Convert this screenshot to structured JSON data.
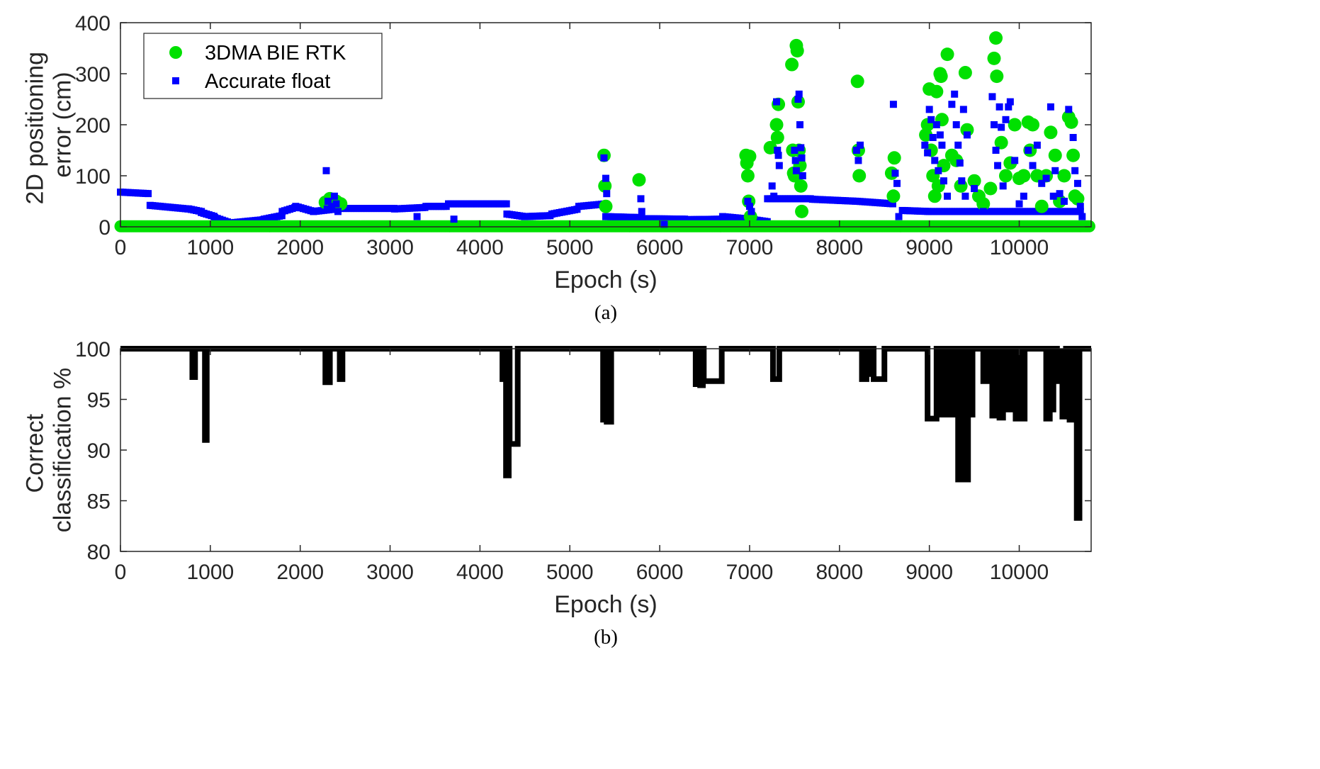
{
  "chart_data": [
    {
      "type": "scatter",
      "caption": "(a)",
      "xlabel": "Epoch (s)",
      "ylabel": [
        "2D positioning",
        "error (cm)"
      ],
      "xlim": [
        0,
        10800
      ],
      "ylim": [
        0,
        400
      ],
      "xticks": [
        0,
        1000,
        2000,
        3000,
        4000,
        5000,
        6000,
        7000,
        8000,
        9000,
        10000
      ],
      "yticks": [
        0,
        100,
        200,
        300,
        400
      ],
      "grid": false,
      "legend": {
        "placement": "top-left"
      },
      "series": [
        {
          "name": "3DMA BIE RTK",
          "color": "#00e000",
          "marker": "circle",
          "baseline": {
            "x_start": 0,
            "x_end": 10800,
            "y": 1
          },
          "points": [
            [
              2280,
              48
            ],
            [
              2330,
              55
            ],
            [
              2400,
              50
            ],
            [
              2450,
              45
            ],
            [
              5380,
              140
            ],
            [
              5390,
              80
            ],
            [
              5400,
              40
            ],
            [
              5770,
              92
            ],
            [
              6960,
              140
            ],
            [
              6970,
              125
            ],
            [
              6980,
              100
            ],
            [
              6990,
              50
            ],
            [
              7000,
              138
            ],
            [
              7010,
              20
            ],
            [
              7230,
              155
            ],
            [
              7300,
              200
            ],
            [
              7310,
              175
            ],
            [
              7320,
              240
            ],
            [
              7470,
              318
            ],
            [
              7480,
              150
            ],
            [
              7490,
              105
            ],
            [
              7500,
              100
            ],
            [
              7520,
              355
            ],
            [
              7530,
              345
            ],
            [
              7540,
              245
            ],
            [
              7550,
              150
            ],
            [
              7560,
              120
            ],
            [
              7570,
              80
            ],
            [
              7580,
              30
            ],
            [
              8200,
              285
            ],
            [
              8210,
              150
            ],
            [
              8220,
              100
            ],
            [
              8580,
              105
            ],
            [
              8600,
              60
            ],
            [
              8610,
              135
            ],
            [
              8960,
              180
            ],
            [
              8980,
              200
            ],
            [
              9000,
              270
            ],
            [
              9020,
              150
            ],
            [
              9040,
              100
            ],
            [
              9060,
              60
            ],
            [
              9080,
              265
            ],
            [
              9100,
              80
            ],
            [
              9120,
              300
            ],
            [
              9130,
              295
            ],
            [
              9140,
              210
            ],
            [
              9160,
              120
            ],
            [
              9200,
              338
            ],
            [
              9250,
              140
            ],
            [
              9300,
              130
            ],
            [
              9350,
              80
            ],
            [
              9400,
              302
            ],
            [
              9420,
              190
            ],
            [
              9500,
              90
            ],
            [
              9550,
              60
            ],
            [
              9600,
              45
            ],
            [
              9680,
              75
            ],
            [
              9720,
              330
            ],
            [
              9740,
              370
            ],
            [
              9750,
              295
            ],
            [
              9800,
              165
            ],
            [
              9850,
              100
            ],
            [
              9900,
              125
            ],
            [
              9950,
              200
            ],
            [
              10000,
              95
            ],
            [
              10050,
              100
            ],
            [
              10100,
              205
            ],
            [
              10120,
              150
            ],
            [
              10150,
              200
            ],
            [
              10200,
              100
            ],
            [
              10250,
              40
            ],
            [
              10300,
              100
            ],
            [
              10350,
              185
            ],
            [
              10400,
              140
            ],
            [
              10450,
              50
            ],
            [
              10500,
              100
            ],
            [
              10550,
              215
            ],
            [
              10580,
              205
            ],
            [
              10600,
              140
            ],
            [
              10620,
              60
            ],
            [
              10650,
              55
            ]
          ]
        },
        {
          "name": "Accurate float",
          "color": "#0000ff",
          "marker": "square",
          "segments": [
            [
              0,
              320,
              68,
              65
            ],
            [
              330,
              750,
              42,
              35
            ],
            [
              760,
              900,
              35,
              30
            ],
            [
              900,
              1050,
              28,
              20
            ],
            [
              1050,
              1250,
              18,
              6
            ],
            [
              1250,
              1600,
              8,
              14
            ],
            [
              1600,
              1800,
              15,
              22
            ],
            [
              1800,
              1950,
              30,
              38
            ],
            [
              1950,
              2150,
              40,
              30
            ],
            [
              2150,
              2400,
              30,
              35
            ],
            [
              2400,
              3050,
              36,
              36
            ],
            [
              3050,
              3400,
              35,
              38
            ],
            [
              3400,
              3650,
              40,
              40
            ],
            [
              3650,
              4300,
              45,
              45
            ],
            [
              4300,
              4500,
              25,
              20
            ],
            [
              4500,
              4800,
              20,
              22
            ],
            [
              4800,
              5100,
              25,
              35
            ],
            [
              5100,
              5400,
              40,
              45
            ],
            [
              5400,
              5800,
              20,
              18
            ],
            [
              5800,
              6300,
              16,
              15
            ],
            [
              6300,
              6700,
              14,
              15
            ],
            [
              6700,
              7000,
              20,
              15
            ],
            [
              7000,
              7200,
              15,
              10
            ],
            [
              7200,
              7700,
              55,
              55
            ],
            [
              7700,
              8200,
              54,
              50
            ],
            [
              8200,
              8600,
              50,
              45
            ],
            [
              8700,
              9000,
              32,
              30
            ],
            [
              9000,
              10700,
              30,
              30
            ]
          ],
          "points": [
            [
              2290,
              110
            ],
            [
              2300,
              35
            ],
            [
              2310,
              50
            ],
            [
              2350,
              40
            ],
            [
              2380,
              60
            ],
            [
              2400,
              45
            ],
            [
              2420,
              30
            ],
            [
              3300,
              20
            ],
            [
              3710,
              15
            ],
            [
              5380,
              135
            ],
            [
              5400,
              95
            ],
            [
              5410,
              65
            ],
            [
              5790,
              55
            ],
            [
              5800,
              30
            ],
            [
              6050,
              5
            ],
            [
              6980,
              50
            ],
            [
              7000,
              40
            ],
            [
              7020,
              30
            ],
            [
              7250,
              80
            ],
            [
              7270,
              60
            ],
            [
              7300,
              245
            ],
            [
              7310,
              150
            ],
            [
              7320,
              140
            ],
            [
              7330,
              120
            ],
            [
              7500,
              150
            ],
            [
              7510,
              130
            ],
            [
              7520,
              110
            ],
            [
              7540,
              250
            ],
            [
              7550,
              260
            ],
            [
              7560,
              200
            ],
            [
              7570,
              155
            ],
            [
              7580,
              135
            ],
            [
              7590,
              100
            ],
            [
              8190,
              150
            ],
            [
              8210,
              130
            ],
            [
              8230,
              160
            ],
            [
              8600,
              240
            ],
            [
              8620,
              105
            ],
            [
              8640,
              85
            ],
            [
              8660,
              20
            ],
            [
              8950,
              160
            ],
            [
              8980,
              145
            ],
            [
              9000,
              230
            ],
            [
              9020,
              210
            ],
            [
              9040,
              175
            ],
            [
              9060,
              130
            ],
            [
              9080,
              200
            ],
            [
              9100,
              110
            ],
            [
              9120,
              180
            ],
            [
              9140,
              160
            ],
            [
              9160,
              90
            ],
            [
              9200,
              60
            ],
            [
              9250,
              240
            ],
            [
              9280,
              260
            ],
            [
              9300,
              200
            ],
            [
              9320,
              160
            ],
            [
              9340,
              125
            ],
            [
              9360,
              90
            ],
            [
              9380,
              230
            ],
            [
              9400,
              60
            ],
            [
              9420,
              180
            ],
            [
              9500,
              75
            ],
            [
              9600,
              30
            ],
            [
              9700,
              255
            ],
            [
              9720,
              200
            ],
            [
              9740,
              150
            ],
            [
              9760,
              120
            ],
            [
              9780,
              235
            ],
            [
              9800,
              195
            ],
            [
              9820,
              80
            ],
            [
              9850,
              210
            ],
            [
              9880,
              235
            ],
            [
              9900,
              245
            ],
            [
              9950,
              130
            ],
            [
              10000,
              45
            ],
            [
              10050,
              60
            ],
            [
              10100,
              150
            ],
            [
              10150,
              120
            ],
            [
              10200,
              160
            ],
            [
              10250,
              85
            ],
            [
              10300,
              95
            ],
            [
              10350,
              235
            ],
            [
              10380,
              60
            ],
            [
              10400,
              110
            ],
            [
              10450,
              65
            ],
            [
              10500,
              50
            ],
            [
              10550,
              230
            ],
            [
              10600,
              175
            ],
            [
              10620,
              110
            ],
            [
              10650,
              85
            ],
            [
              10680,
              40
            ],
            [
              10700,
              20
            ]
          ]
        }
      ]
    },
    {
      "type": "line",
      "caption": "(b)",
      "xlabel": "Epoch (s)",
      "ylabel": [
        "Correct",
        "classification %"
      ],
      "xlim": [
        0,
        10800
      ],
      "ylim": [
        80,
        100
      ],
      "xticks": [
        0,
        1000,
        2000,
        3000,
        4000,
        5000,
        6000,
        7000,
        8000,
        9000,
        10000
      ],
      "yticks": [
        80,
        85,
        90,
        95,
        100
      ],
      "grid": false,
      "series": [
        {
          "color": "#000000",
          "baseline": 100,
          "dips": [
            [
              800,
              830,
              97.2
            ],
            [
              940,
              960,
              91
            ],
            [
              2280,
              2330,
              96.7
            ],
            [
              2440,
              2470,
              97
            ],
            [
              4250,
              4280,
              97
            ],
            [
              4290,
              4320,
              87.5
            ],
            [
              4330,
              4420,
              90.6
            ],
            [
              5370,
              5400,
              93
            ],
            [
              5410,
              5460,
              92.8
            ],
            [
              6400,
              6440,
              96.5
            ],
            [
              6450,
              6480,
              96.4
            ],
            [
              6490,
              6690,
              96.8
            ],
            [
              7260,
              7330,
              97
            ],
            [
              8250,
              8300,
              97
            ],
            [
              8320,
              8370,
              97.5
            ],
            [
              8380,
              8500,
              97
            ],
            [
              8980,
              9080,
              93.1
            ],
            [
              9110,
              9150,
              93.5
            ],
            [
              9180,
              9230,
              93.5
            ],
            [
              9260,
              9290,
              93.5
            ],
            [
              9320,
              9370,
              87.1
            ],
            [
              9380,
              9430,
              87.1
            ],
            [
              9450,
              9480,
              93.5
            ],
            [
              9600,
              9660,
              96.8
            ],
            [
              9700,
              9760,
              93.4
            ],
            [
              9780,
              9820,
              93.2
            ],
            [
              9850,
              9900,
              94
            ],
            [
              9960,
              10000,
              93.1
            ],
            [
              10040,
              10060,
              93.1
            ],
            [
              10300,
              10340,
              93.1
            ],
            [
              10350,
              10380,
              94
            ],
            [
              10420,
              10480,
              96.8
            ],
            [
              10480,
              10520,
              93.3
            ],
            [
              10560,
              10590,
              93
            ],
            [
              10600,
              10630,
              96.5
            ],
            [
              10640,
              10670,
              83.3
            ]
          ]
        }
      ]
    }
  ]
}
